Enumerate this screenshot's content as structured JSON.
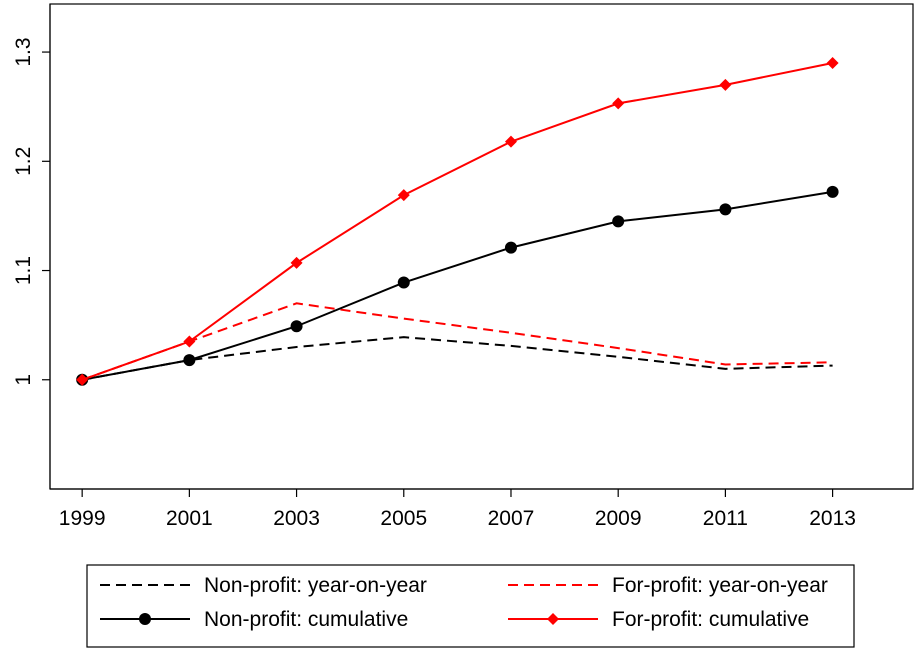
{
  "chart_data": {
    "type": "line",
    "title": "",
    "xlabel": "",
    "ylabel": "",
    "x": [
      1999,
      2001,
      2003,
      2005,
      2007,
      2009,
      2011,
      2013
    ],
    "x_ticks": [
      "1999",
      "2001",
      "2003",
      "2005",
      "2007",
      "2009",
      "2011",
      "2013"
    ],
    "y_ticks": [
      "1",
      "1.1",
      "1.2",
      "1.3"
    ],
    "xlim": [
      1998.4,
      2014.5
    ],
    "ylim": [
      0.9,
      1.344
    ],
    "grid": false,
    "legend_position": "bottom",
    "series": [
      {
        "name": "Non-profit: year-on-year",
        "color": "#000000",
        "dash": "dashed",
        "marker": "none",
        "values": [
          1.0,
          1.018,
          1.03,
          1.039,
          1.031,
          1.021,
          1.01,
          1.013
        ]
      },
      {
        "name": "For-profit: year-on-year",
        "color": "#ff0000",
        "dash": "dashed",
        "marker": "none",
        "values": [
          1.0,
          1.035,
          1.07,
          1.056,
          1.043,
          1.029,
          1.014,
          1.016
        ]
      },
      {
        "name": "Non-profit: cumulative",
        "color": "#000000",
        "dash": "solid",
        "marker": "circle",
        "values": [
          1.0,
          1.018,
          1.049,
          1.089,
          1.121,
          1.145,
          1.156,
          1.172
        ]
      },
      {
        "name": "For-profit: cumulative",
        "color": "#ff0000",
        "dash": "solid",
        "marker": "diamond",
        "values": [
          1.0,
          1.035,
          1.107,
          1.169,
          1.218,
          1.253,
          1.27,
          1.29
        ]
      }
    ]
  }
}
